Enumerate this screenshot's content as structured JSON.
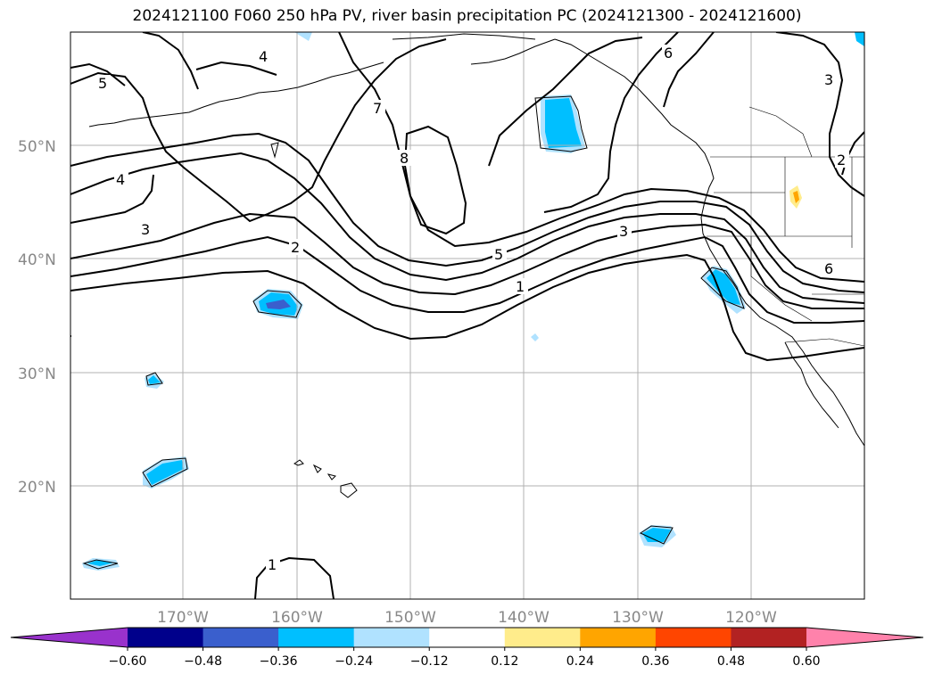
{
  "title": "2024121100 F060 250 hPa PV, river basin precipitation PC (2024121300 - 2024121600)",
  "map": {
    "lat_labels": [
      "50°N",
      "40°N",
      "30°N",
      "20°N"
    ],
    "lon_labels": [
      "170°W",
      "160°W",
      "150°W",
      "140°W",
      "130°W",
      "120°W"
    ],
    "gridline_color": "#b0b0b0",
    "coastline_color": "#000000"
  },
  "pv_contours": {
    "labels": [
      "5",
      "4",
      "3",
      "2",
      "4",
      "7",
      "8",
      "6",
      "3",
      "3",
      "5",
      "1",
      "2",
      "6",
      "1"
    ]
  },
  "colorbar": {
    "ticks": [
      "−0.60",
      "−0.48",
      "−0.36",
      "−0.24",
      "−0.12",
      "0.12",
      "0.24",
      "0.36",
      "0.48",
      "0.60"
    ],
    "colors": [
      "#9932cc",
      "#00008b",
      "#3a5fcd",
      "#00bfff",
      "#b0e2ff",
      "#ffffff",
      "#ffec8b",
      "#ffa500",
      "#ff4500",
      "#b22222",
      "#ff82ab"
    ]
  }
}
